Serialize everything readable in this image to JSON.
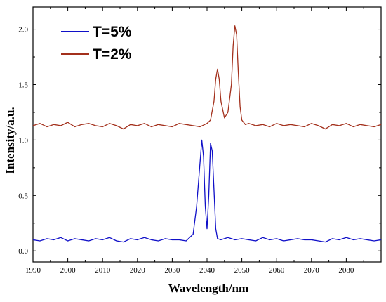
{
  "chart_data": {
    "type": "line",
    "title": "",
    "xlabel": "Wavelength/nm",
    "ylabel": "Intensity/a.u.",
    "xlim": [
      1990,
      2090
    ],
    "ylim": [
      -0.1,
      2.2
    ],
    "x_ticks": [
      1990,
      2000,
      2010,
      2020,
      2030,
      2040,
      2050,
      2060,
      2070,
      2080
    ],
    "y_ticks": [
      0.0,
      0.5,
      1.0,
      1.5,
      2.0
    ],
    "x_tick_labels": [
      "1990",
      "2000",
      "2010",
      "2020",
      "2030",
      "2040",
      "2050",
      "2060",
      "2070",
      "2080"
    ],
    "y_tick_labels": [
      "0.0",
      "0.5",
      "1.0",
      "1.5",
      "2.0"
    ],
    "grid": false,
    "legend_position": "top-left",
    "series": [
      {
        "name": "T=5%",
        "color": "#1010c8",
        "x": [
          1990,
          1992,
          1994,
          1996,
          1998,
          2000,
          2002,
          2004,
          2006,
          2008,
          2010,
          2012,
          2014,
          2016,
          2018,
          2020,
          2022,
          2024,
          2026,
          2028,
          2030,
          2032,
          2034,
          2035,
          2036,
          2037,
          2038,
          2038.5,
          2039,
          2039.5,
          2040,
          2040.5,
          2041,
          2041.5,
          2042,
          2042.5,
          2043,
          2044,
          2046,
          2048,
          2050,
          2052,
          2054,
          2056,
          2058,
          2060,
          2062,
          2064,
          2066,
          2068,
          2070,
          2072,
          2074,
          2076,
          2078,
          2080,
          2082,
          2084,
          2086,
          2088,
          2090
        ],
        "values": [
          0.1,
          0.09,
          0.11,
          0.1,
          0.12,
          0.09,
          0.11,
          0.1,
          0.09,
          0.11,
          0.1,
          0.12,
          0.09,
          0.08,
          0.11,
          0.1,
          0.12,
          0.1,
          0.09,
          0.11,
          0.1,
          0.1,
          0.09,
          0.12,
          0.15,
          0.4,
          0.8,
          1.0,
          0.85,
          0.4,
          0.2,
          0.5,
          0.97,
          0.9,
          0.55,
          0.2,
          0.11,
          0.1,
          0.12,
          0.1,
          0.11,
          0.1,
          0.09,
          0.12,
          0.1,
          0.11,
          0.09,
          0.1,
          0.11,
          0.1,
          0.1,
          0.09,
          0.08,
          0.11,
          0.1,
          0.12,
          0.1,
          0.11,
          0.1,
          0.09,
          0.1
        ]
      },
      {
        "name": "T=2%",
        "color": "#a3301c",
        "x": [
          1990,
          1992,
          1994,
          1996,
          1998,
          2000,
          2002,
          2004,
          2006,
          2008,
          2010,
          2012,
          2014,
          2016,
          2018,
          2020,
          2022,
          2024,
          2026,
          2028,
          2030,
          2032,
          2034,
          2036,
          2038,
          2040,
          2041,
          2042,
          2042.5,
          2043,
          2043.5,
          2044,
          2045,
          2046,
          2047,
          2047.5,
          2048,
          2048.5,
          2049,
          2049.5,
          2050,
          2051,
          2052,
          2054,
          2056,
          2058,
          2060,
          2062,
          2064,
          2066,
          2068,
          2070,
          2072,
          2074,
          2076,
          2078,
          2080,
          2082,
          2084,
          2086,
          2088,
          2090
        ],
        "values": [
          1.13,
          1.15,
          1.12,
          1.14,
          1.13,
          1.16,
          1.12,
          1.14,
          1.15,
          1.13,
          1.12,
          1.15,
          1.13,
          1.1,
          1.14,
          1.13,
          1.15,
          1.12,
          1.14,
          1.13,
          1.12,
          1.15,
          1.14,
          1.13,
          1.12,
          1.15,
          1.18,
          1.35,
          1.55,
          1.64,
          1.55,
          1.35,
          1.2,
          1.25,
          1.5,
          1.85,
          2.03,
          1.95,
          1.6,
          1.3,
          1.18,
          1.14,
          1.15,
          1.13,
          1.14,
          1.12,
          1.15,
          1.13,
          1.14,
          1.13,
          1.12,
          1.15,
          1.13,
          1.1,
          1.14,
          1.13,
          1.15,
          1.12,
          1.14,
          1.13,
          1.12,
          1.14
        ]
      }
    ]
  }
}
